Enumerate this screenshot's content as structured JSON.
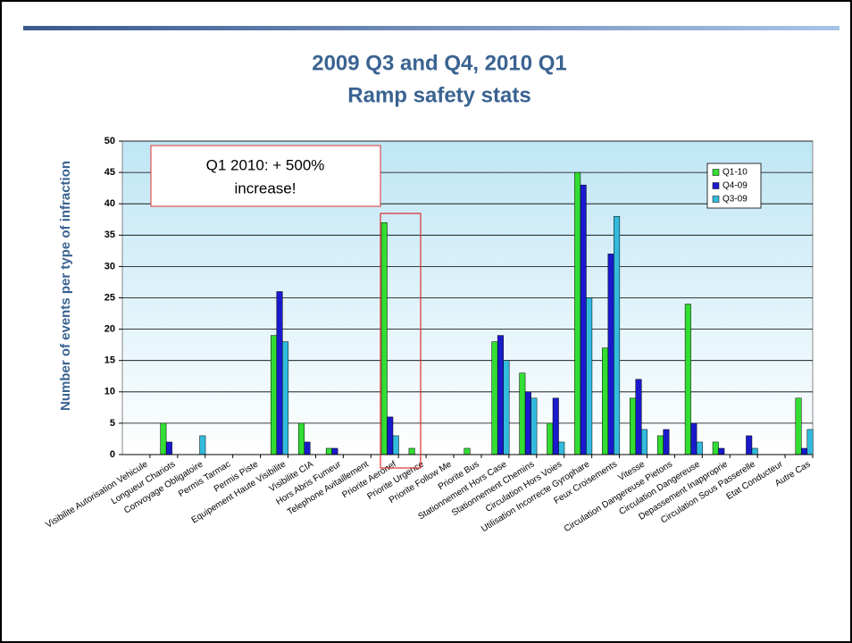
{
  "chart_data": {
    "type": "bar",
    "title": "2009 Q3 and Q4, 2010 Q1",
    "subtitle": "Ramp safety stats",
    "y_label": "Number of events per type of infraction",
    "annotation": [
      "Q1 2010: + 500%",
      "increase!"
    ],
    "categories": [
      "Visibilite Autorisation Vehicule",
      "Longueur Chariots",
      "Convoyage Obligatoire",
      "Permis Tarmac",
      "Permis Piste",
      "Equipement Haute Visibilite",
      "Visibilite CIA",
      "Hors Abris Fumeur",
      "Telephone Avitaillement",
      "Priorite Aeronef",
      "Priorite Urgence",
      "Priorite Follow Me",
      "Priorite Bus",
      "Stationnement Hors Case",
      "Stationnement Chemins",
      "Circulation Hors Voies",
      "Utilisation Incorrecte Gyrophare",
      "Feux Croisements",
      "Vitesse",
      "Circulation Dangereuse Pietons",
      "Circulation Dangereuse",
      "Depassement Inapproprie",
      "Circulation Sous Passerelle",
      "Etat Conducteur",
      "Autre Cas"
    ],
    "series": [
      {
        "name": "Q1-10",
        "color": "#33dd33",
        "values": [
          0,
          5,
          0,
          0,
          0,
          19,
          5,
          1,
          0,
          37,
          1,
          0,
          1,
          18,
          13,
          5,
          45,
          17,
          9,
          3,
          24,
          2,
          0,
          0,
          9
        ]
      },
      {
        "name": "Q4-09",
        "color": "#1a1acc",
        "values": [
          0,
          2,
          0,
          0,
          0,
          26,
          2,
          1,
          0,
          6,
          0,
          0,
          0,
          19,
          10,
          9,
          43,
          32,
          12,
          4,
          5,
          1,
          3,
          0,
          1
        ]
      },
      {
        "name": "Q3-09",
        "color": "#33bbdd",
        "values": [
          0,
          0,
          3,
          0,
          0,
          18,
          0,
          0,
          0,
          3,
          0,
          0,
          0,
          15,
          9,
          2,
          25,
          38,
          4,
          0,
          2,
          0,
          1,
          0,
          4
        ]
      }
    ],
    "ylim": [
      0,
      50
    ],
    "yticks": [
      0,
      5,
      10,
      15,
      20,
      25,
      30,
      35,
      40,
      45,
      50
    ],
    "grid": true,
    "legend": "top-right"
  }
}
